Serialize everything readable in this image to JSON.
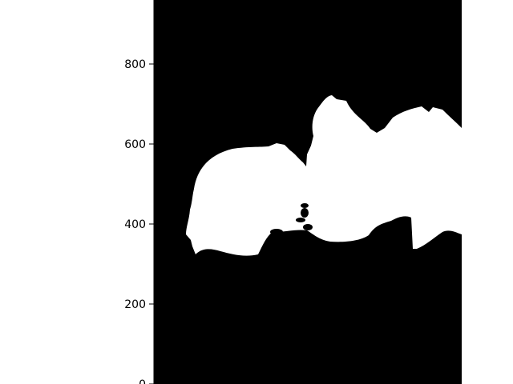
{
  "chart_data": {
    "type": "heatmap",
    "title": "",
    "xlabel": "",
    "ylabel": "",
    "ylim": [
      0,
      960
    ],
    "y_ticks": [
      "0",
      "200",
      "400",
      "600",
      "800"
    ],
    "x_ticks": [],
    "grid": false,
    "legend": "none",
    "colormap": {
      "background": "#000000",
      "mask": "#ffffff"
    },
    "mask_outline": {
      "description": "binary mask image; boundary of the white region",
      "points_y_units": [
        [
          97,
          380
        ],
        [
          102,
          395
        ],
        [
          105,
          330
        ],
        [
          120,
          340
        ],
        [
          145,
          320
        ],
        [
          170,
          320
        ],
        [
          195,
          335
        ],
        [
          212,
          385
        ],
        [
          240,
          398
        ],
        [
          265,
          390
        ],
        [
          290,
          360
        ],
        [
          330,
          358
        ],
        [
          355,
          380
        ],
        [
          378,
          405
        ],
        [
          398,
          413
        ],
        [
          412,
          340
        ],
        [
          440,
          360
        ],
        [
          470,
          385
        ],
        [
          492,
          370
        ],
        [
          492,
          632
        ],
        [
          470,
          650
        ],
        [
          445,
          690
        ],
        [
          420,
          695
        ],
        [
          400,
          683
        ],
        [
          385,
          655
        ],
        [
          365,
          640
        ],
        [
          345,
          660
        ],
        [
          320,
          705
        ],
        [
          290,
          718
        ],
        [
          265,
          702
        ],
        [
          260,
          670
        ],
        [
          255,
          600
        ],
        [
          250,
          545
        ],
        [
          238,
          570
        ],
        [
          225,
          590
        ],
        [
          210,
          592
        ],
        [
          150,
          590
        ],
        [
          120,
          570
        ],
        [
          100,
          530
        ],
        [
          95,
          470
        ],
        [
          92,
          420
        ]
      ]
    }
  }
}
